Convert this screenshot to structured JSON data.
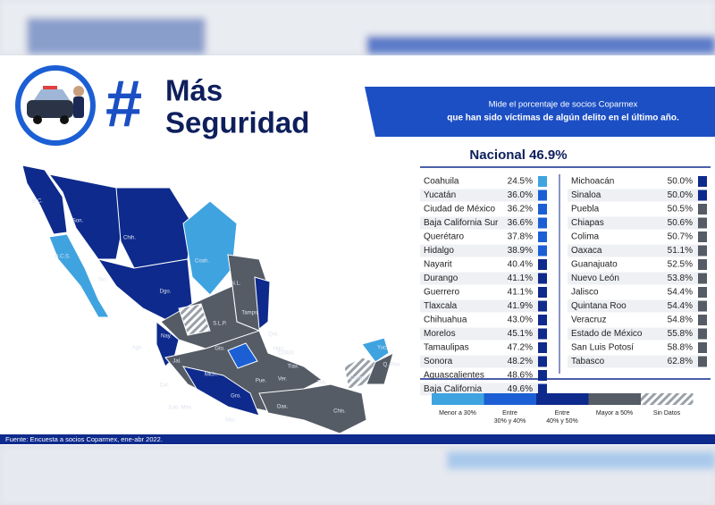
{
  "header": {
    "hash": "#",
    "title_line1": "Más",
    "title_line2": "Seguridad",
    "banner_line1": "Mide el porcentaje de socios Coparmex",
    "banner_line2": "que han sido víctimas de algún delito en el último año."
  },
  "national": "Nacional 46.9%",
  "table": {
    "left": [
      {
        "state": "Coahuila",
        "value": "24.5%",
        "color": "#3fa3e0"
      },
      {
        "state": "Yucatán",
        "value": "36.0%",
        "color": "#1c5fd4"
      },
      {
        "state": "Ciudad de México",
        "value": "36.2%",
        "color": "#1c5fd4"
      },
      {
        "state": "Baja California Sur",
        "value": "36.6%",
        "color": "#1c5fd4"
      },
      {
        "state": "Querétaro",
        "value": "37.8%",
        "color": "#1c5fd4"
      },
      {
        "state": "Hidalgo",
        "value": "38.9%",
        "color": "#1c5fd4"
      },
      {
        "state": "Nayarit",
        "value": "40.4%",
        "color": "#0e2a8c"
      },
      {
        "state": "Durango",
        "value": "41.1%",
        "color": "#0e2a8c"
      },
      {
        "state": "Guerrero",
        "value": "41.1%",
        "color": "#0e2a8c"
      },
      {
        "state": "Tlaxcala",
        "value": "41.9%",
        "color": "#0e2a8c"
      },
      {
        "state": "Chihuahua",
        "value": "43.0%",
        "color": "#0e2a8c"
      },
      {
        "state": "Morelos",
        "value": "45.1%",
        "color": "#0e2a8c"
      },
      {
        "state": "Tamaulipas",
        "value": "47.2%",
        "color": "#0e2a8c"
      },
      {
        "state": "Sonora",
        "value": "48.2%",
        "color": "#0e2a8c"
      },
      {
        "state": "Aguascalientes",
        "value": "48.6%",
        "color": "#0e2a8c"
      },
      {
        "state": "Baja California",
        "value": "49.6%",
        "color": "#0e2a8c"
      }
    ],
    "right": [
      {
        "state": "Michoacán",
        "value": "50.0%",
        "color": "#0e2a8c"
      },
      {
        "state": "Sinaloa",
        "value": "50.0%",
        "color": "#0e2a8c"
      },
      {
        "state": "Puebla",
        "value": "50.5%",
        "color": "#555c66"
      },
      {
        "state": "Chiapas",
        "value": "50.6%",
        "color": "#555c66"
      },
      {
        "state": "Colima",
        "value": "50.7%",
        "color": "#555c66"
      },
      {
        "state": "Oaxaca",
        "value": "51.1%",
        "color": "#555c66"
      },
      {
        "state": "Guanajuato",
        "value": "52.5%",
        "color": "#555c66"
      },
      {
        "state": "Nuevo León",
        "value": "53.8%",
        "color": "#555c66"
      },
      {
        "state": "Jalisco",
        "value": "54.4%",
        "color": "#555c66"
      },
      {
        "state": "Quintana Roo",
        "value": "54.4%",
        "color": "#555c66"
      },
      {
        "state": "Veracruz",
        "value": "54.8%",
        "color": "#555c66"
      },
      {
        "state": "Estado de México",
        "value": "55.8%",
        "color": "#555c66"
      },
      {
        "state": "San Luis Potosí",
        "value": "58.8%",
        "color": "#555c66"
      },
      {
        "state": "Tabasco",
        "value": "62.8%",
        "color": "#555c66"
      }
    ]
  },
  "legend": [
    {
      "lines": [
        "Menor a 30%"
      ],
      "color": "#3fa3e0"
    },
    {
      "lines": [
        "Entre",
        "30% y 40%"
      ],
      "color": "#1c5fd4"
    },
    {
      "lines": [
        "Entre",
        "40% y 50%"
      ],
      "color": "#0e2a8c"
    },
    {
      "lines": [
        "Mayor a 50%"
      ],
      "color": "#555c66"
    },
    {
      "lines": [
        "Sin Datos"
      ],
      "color": "hatch"
    }
  ],
  "map_labels": [
    "B.C.",
    "B.C.S.",
    "Son.",
    "Chih.",
    "Sin.",
    "Dgo.",
    "Coah.",
    "N.L.",
    "Tamps.",
    "S.L.P.",
    "Qro.",
    "Hgo.",
    "Nay.",
    "Ags.",
    "Jal.",
    "Gto.",
    "CDMX",
    "Tlax.",
    "Ver.",
    "Pue.",
    "Mich.",
    "Col.",
    "Edo. Méx.",
    "Gro.",
    "Mor.",
    "Oax.",
    "Chis.",
    "Tab.",
    "Camp.",
    "Yuc.",
    "Q. Roo"
  ],
  "footer": "Fuente: Encuesta a socios Coparmex, ene-abr 2022."
}
